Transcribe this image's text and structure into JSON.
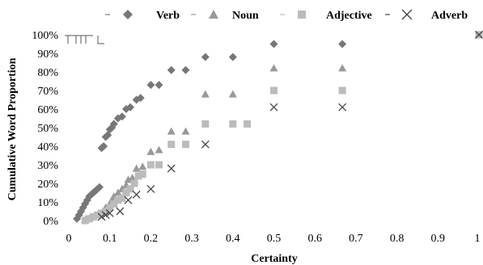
{
  "chart_data": {
    "type": "scatter",
    "title": "",
    "xlabel": "Certainty",
    "ylabel": "Cumulative Word Proportion",
    "xlim": [
      0,
      1
    ],
    "ylim": [
      0,
      100
    ],
    "x_ticks": [
      "0",
      "0.1",
      "0.2",
      "0.3",
      "0.4",
      "0.5",
      "0.6",
      "0.7",
      "0.8",
      "0.9",
      "1"
    ],
    "y_ticks": [
      "0%",
      "10%",
      "20%",
      "30%",
      "40%",
      "50%",
      "60%",
      "70%",
      "80%",
      "90%",
      "100%"
    ],
    "legend_position": "top",
    "grid": false,
    "series": [
      {
        "name": "Verb",
        "marker": "diamond",
        "color": "#777777",
        "points": [
          [
            0.02,
            1
          ],
          [
            0.025,
            3
          ],
          [
            0.03,
            5
          ],
          [
            0.035,
            7
          ],
          [
            0.04,
            9
          ],
          [
            0.045,
            11
          ],
          [
            0.05,
            13
          ],
          [
            0.055,
            14
          ],
          [
            0.06,
            15
          ],
          [
            0.065,
            16
          ],
          [
            0.07,
            17
          ],
          [
            0.075,
            18
          ],
          [
            0.08,
            39
          ],
          [
            0.085,
            40
          ],
          [
            0.09,
            45
          ],
          [
            0.095,
            46
          ],
          [
            0.1,
            49
          ],
          [
            0.105,
            50
          ],
          [
            0.11,
            52
          ],
          [
            0.12,
            55
          ],
          [
            0.13,
            56
          ],
          [
            0.14,
            60
          ],
          [
            0.15,
            61
          ],
          [
            0.165,
            65
          ],
          [
            0.175,
            66
          ],
          [
            0.2,
            73
          ],
          [
            0.22,
            73
          ],
          [
            0.25,
            81
          ],
          [
            0.285,
            81
          ],
          [
            0.333,
            88
          ],
          [
            0.4,
            88
          ],
          [
            0.5,
            95
          ],
          [
            0.667,
            95
          ]
        ]
      },
      {
        "name": "Noun",
        "marker": "triangle",
        "color": "#999999",
        "points": [
          [
            0.04,
            0.5
          ],
          [
            0.05,
            1
          ],
          [
            0.06,
            2
          ],
          [
            0.07,
            3
          ],
          [
            0.08,
            4
          ],
          [
            0.09,
            7
          ],
          [
            0.1,
            9
          ],
          [
            0.105,
            11
          ],
          [
            0.11,
            13
          ],
          [
            0.12,
            15
          ],
          [
            0.13,
            17
          ],
          [
            0.14,
            19
          ],
          [
            0.145,
            22
          ],
          [
            0.155,
            23
          ],
          [
            0.165,
            28
          ],
          [
            0.18,
            29
          ],
          [
            0.2,
            37
          ],
          [
            0.22,
            38
          ],
          [
            0.25,
            48
          ],
          [
            0.285,
            48
          ],
          [
            0.333,
            68
          ],
          [
            0.4,
            68
          ],
          [
            0.5,
            82
          ],
          [
            0.667,
            82
          ],
          [
            1.0,
            100
          ]
        ]
      },
      {
        "name": "Adjective",
        "marker": "square",
        "color": "#bbbbbb",
        "points": [
          [
            0.04,
            0
          ],
          [
            0.05,
            1
          ],
          [
            0.06,
            2
          ],
          [
            0.07,
            3
          ],
          [
            0.08,
            4
          ],
          [
            0.09,
            5
          ],
          [
            0.1,
            7
          ],
          [
            0.11,
            9
          ],
          [
            0.12,
            11
          ],
          [
            0.13,
            12
          ],
          [
            0.14,
            15
          ],
          [
            0.15,
            17
          ],
          [
            0.16,
            20
          ],
          [
            0.17,
            24
          ],
          [
            0.18,
            25
          ],
          [
            0.2,
            30
          ],
          [
            0.22,
            30
          ],
          [
            0.25,
            41
          ],
          [
            0.285,
            41
          ],
          [
            0.333,
            52
          ],
          [
            0.4,
            52
          ],
          [
            0.435,
            52
          ],
          [
            0.5,
            70
          ],
          [
            0.667,
            70
          ],
          [
            1.0,
            100
          ]
        ]
      },
      {
        "name": "Adverb",
        "marker": "x",
        "color": "#444444",
        "points": [
          [
            0.08,
            2
          ],
          [
            0.09,
            3
          ],
          [
            0.1,
            4
          ],
          [
            0.125,
            5
          ],
          [
            0.145,
            11
          ],
          [
            0.165,
            14
          ],
          [
            0.2,
            17
          ],
          [
            0.25,
            28
          ],
          [
            0.333,
            41
          ],
          [
            0.5,
            61
          ],
          [
            0.667,
            61
          ],
          [
            1.0,
            100
          ]
        ]
      }
    ]
  }
}
